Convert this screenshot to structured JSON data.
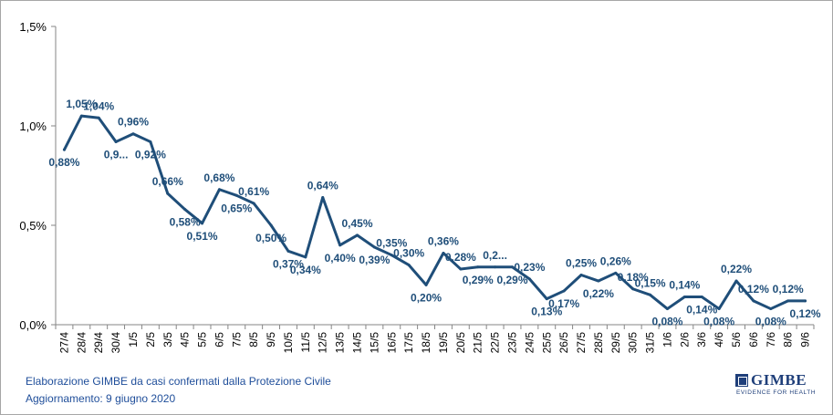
{
  "footer": {
    "line1": "Elaborazione GIMBE da casi confermati dalla Protezione Civile",
    "line2": "Aggiornamento: 9 giugno 2020"
  },
  "logo": {
    "name": "GIMBE",
    "tagline": "EVIDENCE FOR HEALTH"
  },
  "chart_data": {
    "type": "line",
    "title": "",
    "xlabel": "",
    "ylabel": "",
    "ylim": [
      0,
      1.5
    ],
    "yticks": [
      "0,0%",
      "0,5%",
      "1,0%",
      "1,5%"
    ],
    "grid": false,
    "line_color": "#1f4e79",
    "categories": [
      "27/4",
      "28/4",
      "29/4",
      "30/4",
      "1/5",
      "2/5",
      "3/5",
      "4/5",
      "5/5",
      "6/5",
      "7/5",
      "8/5",
      "9/5",
      "10/5",
      "11/5",
      "12/5",
      "13/5",
      "14/5",
      "15/5",
      "16/5",
      "17/5",
      "18/5",
      "19/5",
      "20/5",
      "21/5",
      "22/5",
      "23/5",
      "24/5",
      "25/5",
      "26/5",
      "27/5",
      "28/5",
      "29/5",
      "30/5",
      "31/5",
      "1/6",
      "2/6",
      "3/6",
      "4/6",
      "5/6",
      "6/6",
      "7/6",
      "8/6",
      "9/6"
    ],
    "series": [
      {
        "values": [
          0.88,
          1.05,
          1.04,
          0.92,
          0.96,
          0.92,
          0.66,
          0.58,
          0.51,
          0.68,
          0.65,
          0.61,
          0.5,
          0.37,
          0.34,
          0.64,
          0.4,
          0.45,
          0.39,
          0.35,
          0.3,
          0.2,
          0.36,
          0.28,
          0.29,
          0.29,
          0.29,
          0.23,
          0.13,
          0.17,
          0.25,
          0.22,
          0.26,
          0.18,
          0.15,
          0.08,
          0.14,
          0.14,
          0.08,
          0.22,
          0.12,
          0.08,
          0.12,
          0.12
        ],
        "labels": [
          "0,88%",
          "1,05%",
          "1,04%",
          "0,9...",
          "0,96%",
          "0,92%",
          "0,66%",
          "0,58%",
          "0,51%",
          "0,68%",
          "0,65%",
          "0,61%",
          "0,50%",
          "0,37%",
          "0,34%",
          "0,64%",
          "0,40%",
          "0,45%",
          "0,39%",
          "0,35%",
          "0,30%",
          "0,20%",
          "0,36%",
          "0,28%",
          "0,29%",
          "0,2...",
          "0,29%",
          "0,23%",
          "0,13%",
          "0,17%",
          "0,25%",
          "0,22%",
          "0,26%",
          "0,18%",
          "0,15%",
          "0,08%",
          "0,14%",
          "0,14%",
          "0,08%",
          "0,22%",
          "0,12%",
          "0,08%",
          "0,12%",
          "0,12%"
        ],
        "label_pos": [
          "below",
          "above",
          "above",
          "below",
          "above",
          "below",
          "above",
          "below",
          "below",
          "above",
          "below",
          "above",
          "below",
          "below",
          "below",
          "above",
          "below",
          "above",
          "below",
          "above",
          "above",
          "below",
          "above",
          "above",
          "below",
          "above",
          "below",
          "above",
          "below",
          "below",
          "above",
          "below",
          "above",
          "above",
          "above",
          "below",
          "above",
          "below",
          "below",
          "above",
          "above",
          "below",
          "above",
          "below"
        ]
      }
    ]
  }
}
